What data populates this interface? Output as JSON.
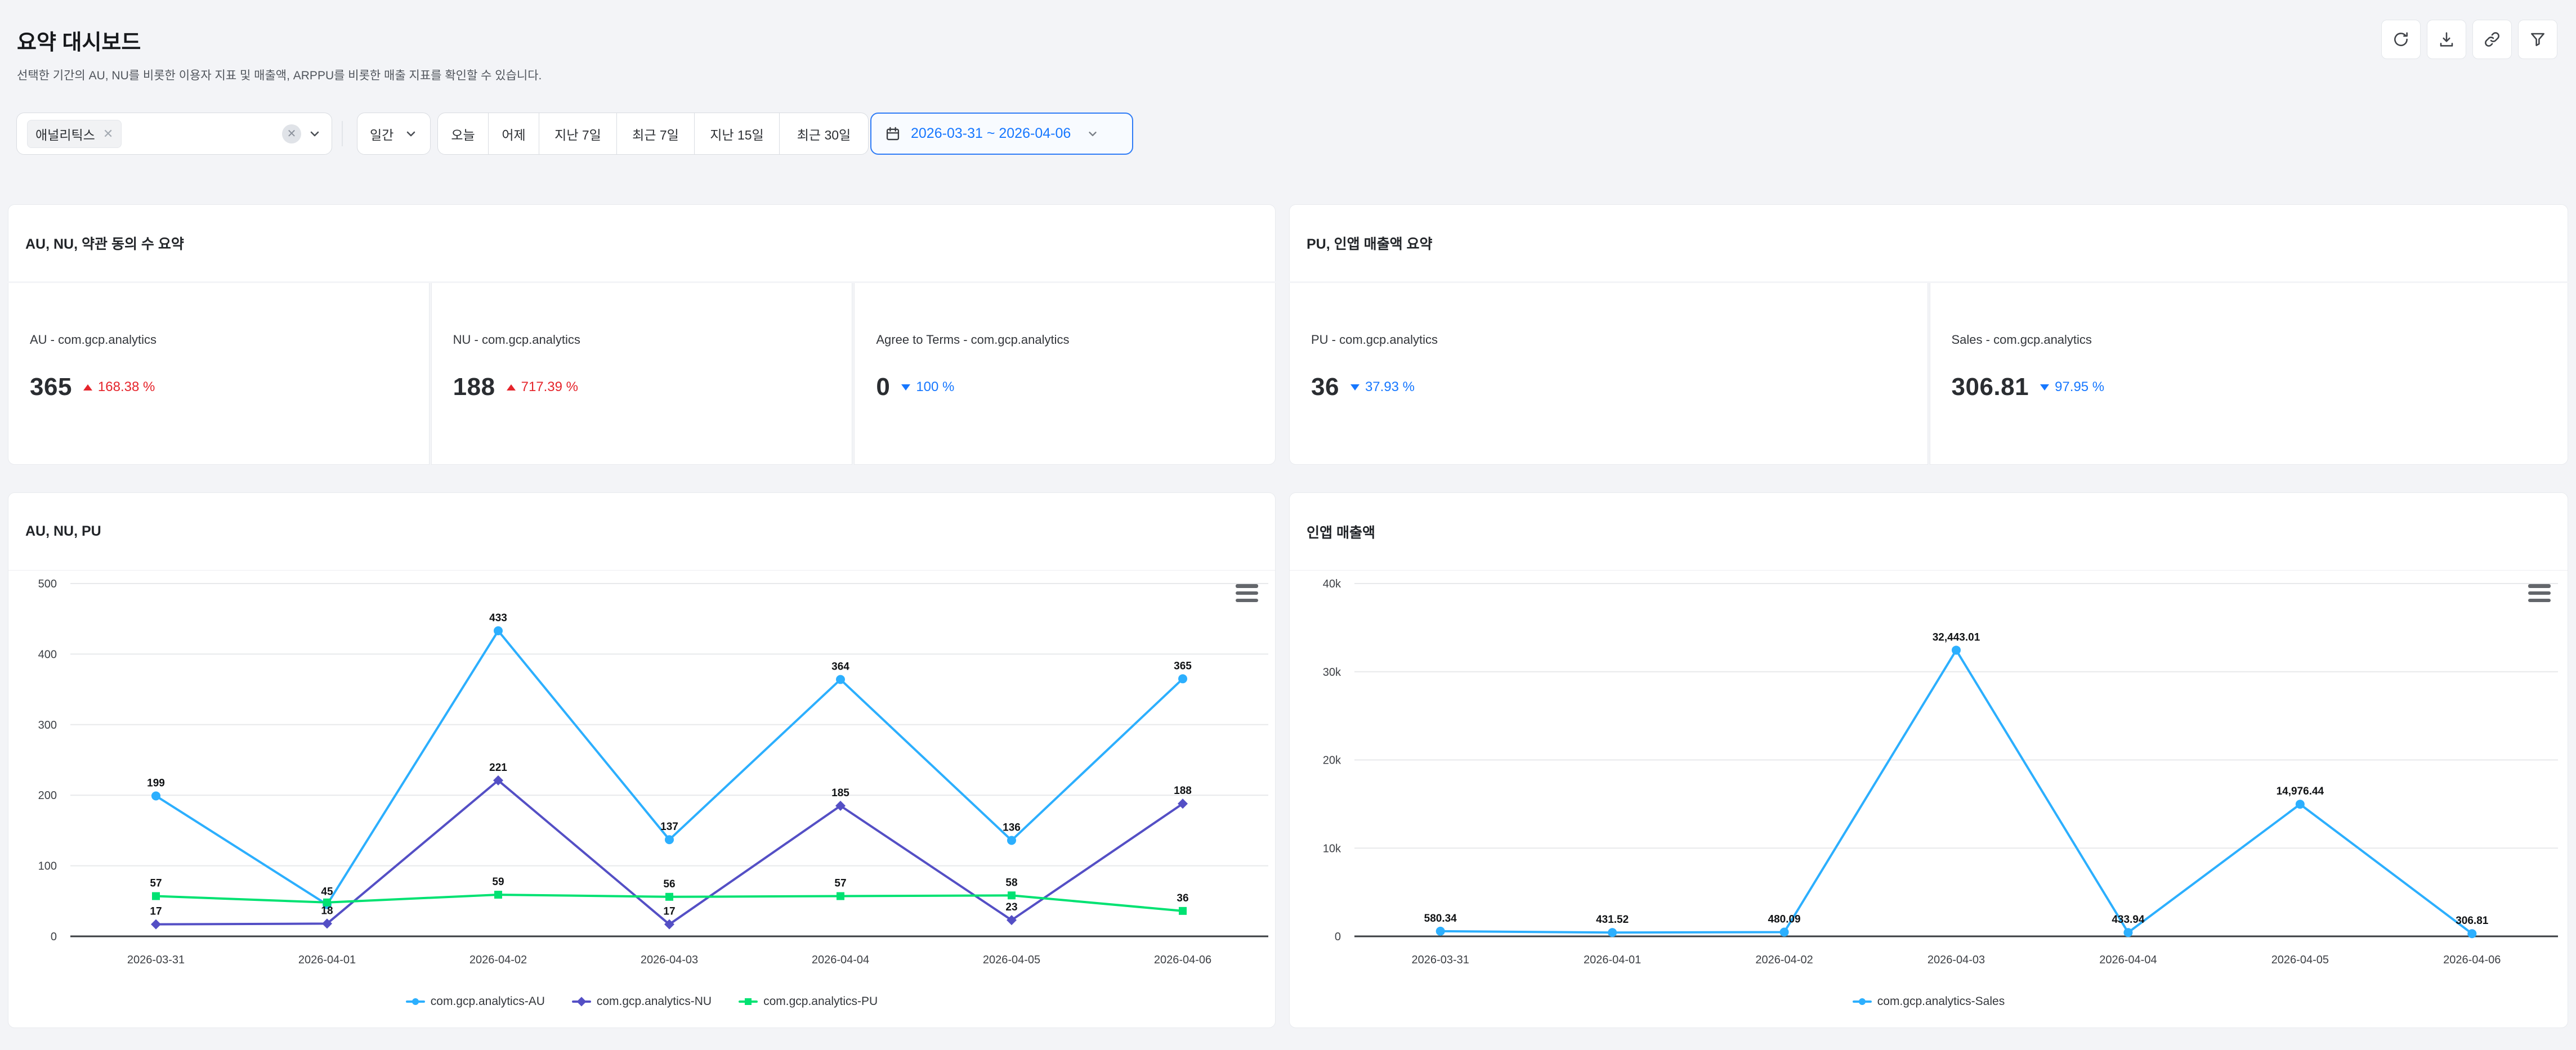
{
  "header": {
    "title": "요약 대시보드",
    "description": "선택한 기간의 AU, NU를 비롯한 이용자 지표 및 매출액, ARPPU를 비롯한 매출 지표를 확인할 수 있습니다.",
    "actions": [
      {
        "name": "refresh"
      },
      {
        "name": "download"
      },
      {
        "name": "copy-link"
      },
      {
        "name": "filter"
      }
    ]
  },
  "filters": {
    "app_tag": "애널리틱스",
    "granularity": "일간",
    "quick_ranges": [
      "오늘",
      "어제",
      "지난 7일",
      "최근 7일",
      "지난 15일",
      "최근 30일"
    ],
    "date_range": "2026-03-31 ~ 2026-04-06"
  },
  "summary_panels": [
    {
      "title": "AU, NU, 약관 동의 수 요약",
      "cards": [
        {
          "label": "AU - com.gcp.analytics",
          "value": "365",
          "delta": "168.38 %",
          "direction": "up"
        },
        {
          "label": "NU - com.gcp.analytics",
          "value": "188",
          "delta": "717.39 %",
          "direction": "up"
        },
        {
          "label": "Agree to Terms - com.gcp.analytics",
          "value": "0",
          "delta": "100 %",
          "direction": "down"
        }
      ]
    },
    {
      "title": "PU, 인앱 매출액 요약",
      "cards": [
        {
          "label": "PU - com.gcp.analytics",
          "value": "36",
          "delta": "37.93 %",
          "direction": "down"
        },
        {
          "label": "Sales - com.gcp.analytics",
          "value": "306.81",
          "delta": "97.95 %",
          "direction": "down"
        }
      ]
    }
  ],
  "colors": {
    "accent_blue": "#1677ff",
    "delta_up_red": "#e5242b",
    "delta_down_blue": "#1677ff",
    "series_au": "#2caffe",
    "series_nu": "#544fc5",
    "series_pu": "#00e272",
    "series_sales": "#2caffe"
  },
  "chart_data": [
    {
      "type": "line",
      "title": "AU, NU, PU",
      "categories": [
        "2026-03-31",
        "2026-04-01",
        "2026-04-02",
        "2026-04-03",
        "2026-04-04",
        "2026-04-05",
        "2026-04-06"
      ],
      "series": [
        {
          "name": "com.gcp.analytics-AU",
          "color": "#2caffe",
          "marker": "circle",
          "values": [
            199,
            45,
            433,
            137,
            364,
            136,
            365
          ],
          "labels": [
            "199",
            "45",
            "433",
            "137",
            "364",
            "136",
            "365"
          ]
        },
        {
          "name": "com.gcp.analytics-NU",
          "color": "#544fc5",
          "marker": "diamond",
          "values": [
            17,
            18,
            221,
            17,
            185,
            23,
            188
          ],
          "labels": [
            "17",
            "18",
            "221",
            "17",
            "185",
            "23",
            "188"
          ]
        },
        {
          "name": "com.gcp.analytics-PU",
          "color": "#00e272",
          "marker": "square",
          "values": [
            57,
            48,
            59,
            56,
            57,
            58,
            36
          ],
          "labels": [
            "57",
            "",
            "59",
            "56",
            "57",
            "58",
            "36"
          ]
        }
      ],
      "xlabel": "",
      "ylabel": "",
      "ylim": [
        0,
        500
      ],
      "yticks": [
        {
          "v": 0,
          "label": "0"
        },
        {
          "v": 100,
          "label": "100"
        },
        {
          "v": 200,
          "label": "200"
        },
        {
          "v": 300,
          "label": "300"
        },
        {
          "v": 400,
          "label": "400"
        },
        {
          "v": 500,
          "label": "500"
        }
      ],
      "grid": true,
      "legend_position": "bottom"
    },
    {
      "type": "line",
      "title": "인앱 매출액",
      "categories": [
        "2026-03-31",
        "2026-04-01",
        "2026-04-02",
        "2026-04-03",
        "2026-04-04",
        "2026-04-05",
        "2026-04-06"
      ],
      "series": [
        {
          "name": "com.gcp.analytics-Sales",
          "color": "#2caffe",
          "marker": "circle",
          "values": [
            580.34,
            431.52,
            480.09,
            32443.01,
            433.94,
            14976.44,
            306.81
          ],
          "labels": [
            "580.34",
            "431.52",
            "480.09",
            "32,443.01",
            "433.94",
            "14,976.44",
            "306.81"
          ]
        }
      ],
      "xlabel": "",
      "ylabel": "",
      "ylim": [
        0,
        40000
      ],
      "yticks": [
        {
          "v": 0,
          "label": "0"
        },
        {
          "v": 10000,
          "label": "10k"
        },
        {
          "v": 20000,
          "label": "20k"
        },
        {
          "v": 30000,
          "label": "30k"
        },
        {
          "v": 40000,
          "label": "40k"
        }
      ],
      "grid": true,
      "legend_position": "bottom"
    }
  ]
}
